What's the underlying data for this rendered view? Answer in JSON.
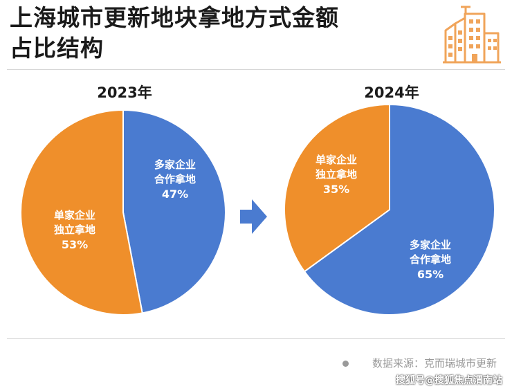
{
  "header": {
    "title_line1": "上海城市更新地块拿地方式金额",
    "title_line2": "占比结构"
  },
  "chart_data": [
    {
      "type": "pie",
      "title": "2023年",
      "slices": [
        {
          "label_line1": "多家企业",
          "label_line2": "合作拿地",
          "value": 47,
          "display": "47%",
          "color": "#4a7bd0"
        },
        {
          "label_line1": "单家企业",
          "label_line2": "独立拿地",
          "value": 53,
          "display": "53%",
          "color": "#ef8f2b"
        }
      ]
    },
    {
      "type": "pie",
      "title": "2024年",
      "slices": [
        {
          "label_line1": "多家企业",
          "label_line2": "合作拿地",
          "value": 65,
          "display": "65%",
          "color": "#4a7bd0"
        },
        {
          "label_line1": "单家企业",
          "label_line2": "独立拿地",
          "value": 35,
          "display": "35%",
          "color": "#ef8f2b"
        }
      ]
    }
  ],
  "footer": {
    "source": "数据来源：克而瑞城市更新",
    "credit": "搜狐号@搜狐焦点渭南站"
  },
  "colors": {
    "blue": "#4a7bd0",
    "orange": "#ef8f2b",
    "arrow": "#4a7bd0",
    "icon": "#f0a45a"
  }
}
